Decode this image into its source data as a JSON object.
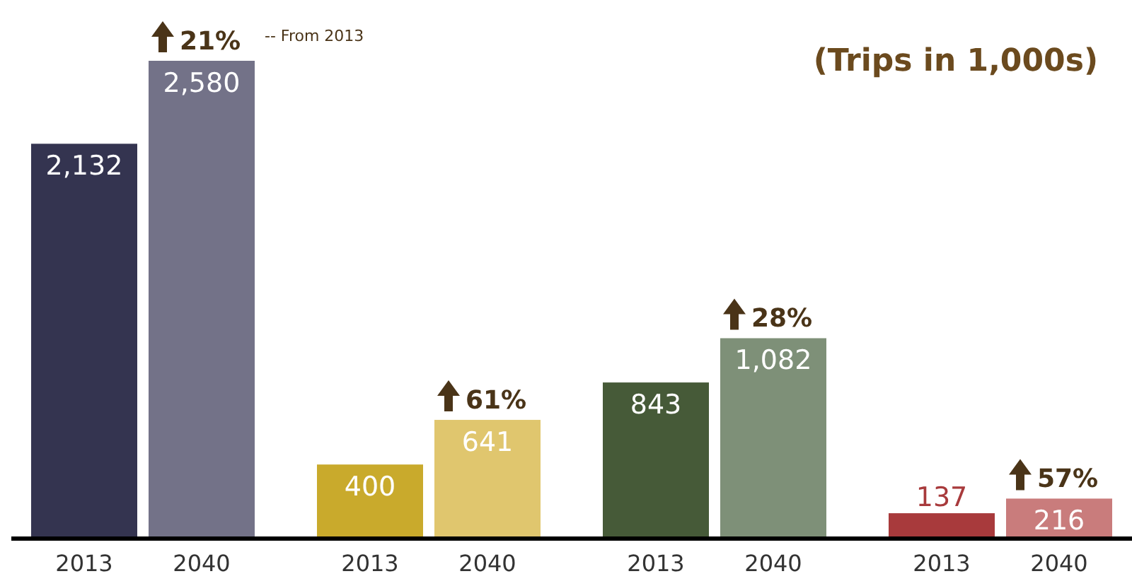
{
  "chart_data": {
    "type": "bar",
    "categories": [
      "2013",
      "2040",
      "2013",
      "2040",
      "2013",
      "2040",
      "2013",
      "2040"
    ],
    "values": [
      2132,
      2580,
      400,
      641,
      843,
      1082,
      137,
      216
    ],
    "colors": [
      "#343450",
      "#737288",
      "#c9aa2c",
      "#e0c66e",
      "#465a38",
      "#7e9078",
      "#a83a3c",
      "#c97c7c"
    ],
    "value_labels": [
      "2,132",
      "2,580",
      "400",
      "641",
      "843",
      "1,082",
      "137",
      "216"
    ],
    "annotations": [
      "21%",
      "-- From 2013",
      "61%",
      "28%",
      "57%",
      "(Trips in 1,000s)"
    ]
  }
}
